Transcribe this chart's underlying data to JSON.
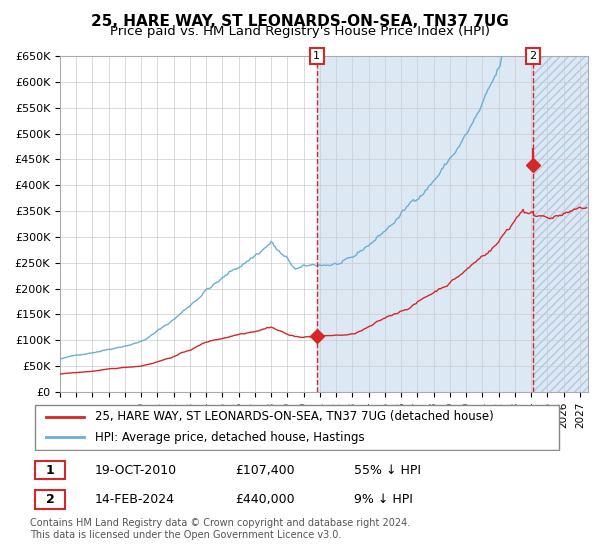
{
  "title": "25, HARE WAY, ST LEONARDS-ON-SEA, TN37 7UG",
  "subtitle": "Price paid vs. HM Land Registry's House Price Index (HPI)",
  "xlabel": "",
  "ylabel": "",
  "ylim": [
    0,
    650000
  ],
  "yticks": [
    0,
    50000,
    100000,
    150000,
    200000,
    250000,
    300000,
    350000,
    400000,
    450000,
    500000,
    550000,
    600000,
    650000
  ],
  "ytick_labels": [
    "£0",
    "£50K",
    "£100K",
    "£150K",
    "£200K",
    "£250K",
    "£300K",
    "£350K",
    "£400K",
    "£450K",
    "£500K",
    "£550K",
    "£600K",
    "£650K"
  ],
  "xlim_start": 1995.0,
  "xlim_end": 2027.5,
  "hpi_color": "#6baed6",
  "price_color": "#d62728",
  "background_color": "#dce9f5",
  "plot_bg_color": "#ffffff",
  "grid_color": "#cccccc",
  "annotation1_date": 2010.8,
  "annotation1_price": 107400,
  "annotation1_hpi": 107400,
  "annotation2_date": 2024.12,
  "annotation2_price": 440000,
  "annotation2_hpi": 440000,
  "legend_label_red": "25, HARE WAY, ST LEONARDS-ON-SEA, TN37 7UG (detached house)",
  "legend_label_blue": "HPI: Average price, detached house, Hastings",
  "table_row1": [
    "1",
    "19-OCT-2010",
    "£107,400",
    "55% ↓ HPI"
  ],
  "table_row2": [
    "2",
    "14-FEB-2024",
    "£440,000",
    "9% ↓ HPI"
  ],
  "footer": "Contains HM Land Registry data © Crown copyright and database right 2024.\nThis data is licensed under the Open Government Licence v3.0.",
  "title_fontsize": 11,
  "subtitle_fontsize": 9.5,
  "tick_fontsize": 8,
  "legend_fontsize": 8.5,
  "footer_fontsize": 7
}
